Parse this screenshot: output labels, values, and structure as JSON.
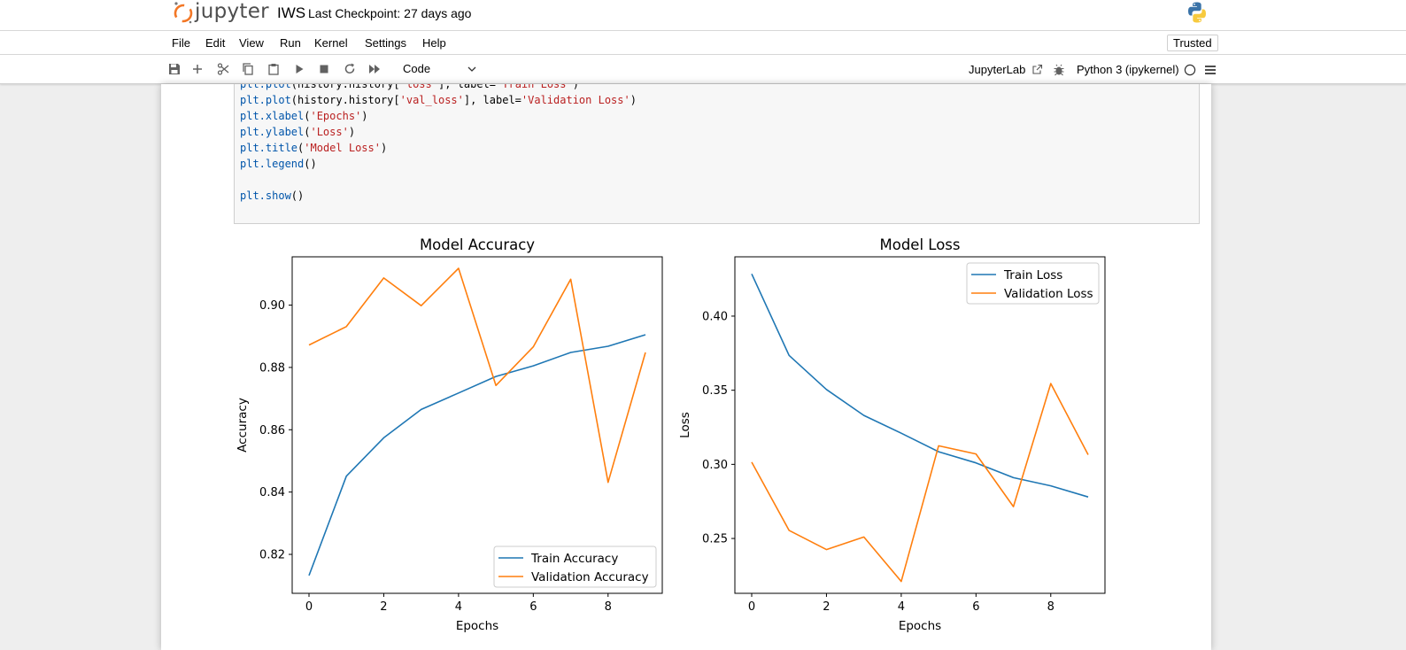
{
  "header": {
    "logo_text": "jupyter",
    "notebook_title": "IWS",
    "checkpoint": "Last Checkpoint: 27 days ago"
  },
  "menu": {
    "items": [
      "File",
      "Edit",
      "View",
      "Run",
      "Kernel",
      "Settings",
      "Help"
    ],
    "trusted": "Trusted"
  },
  "toolbar": {
    "icons": [
      "save-icon",
      "add-cell-icon",
      "cut-icon",
      "copy-icon",
      "paste-icon",
      "run-icon",
      "stop-icon",
      "restart-icon",
      "fast-forward-icon"
    ],
    "cell_type": "Code",
    "jupyterlab_label": "JupyterLab",
    "kernel_name": "Python 3 (ipykernel)"
  },
  "code": {
    "lines": [
      "plt.plot(history.history['loss'], label='Train Loss')",
      "plt.plot(history.history['val_loss'], label='Validation Loss')",
      "plt.xlabel('Epochs')",
      "plt.ylabel('Loss')",
      "plt.title('Model Loss')",
      "plt.legend()",
      "",
      "plt.show()"
    ]
  },
  "chart_data": [
    {
      "type": "line",
      "title": "Model Accuracy",
      "xlabel": "Epochs",
      "ylabel": "Accuracy",
      "xlim": [
        -0.45,
        9.45
      ],
      "ylim": [
        0.8075,
        0.9155
      ],
      "xticks": [
        0,
        2,
        4,
        6,
        8
      ],
      "yticks": [
        0.82,
        0.84,
        0.86,
        0.88,
        0.9
      ],
      "yticklabels": [
        "0.82",
        "0.84",
        "0.86",
        "0.88",
        "0.90"
      ],
      "legend_position": "lower-right",
      "x": [
        0,
        1,
        2,
        3,
        4,
        5,
        6,
        7,
        8,
        9
      ],
      "series": [
        {
          "name": "Train Accuracy",
          "color": "#1f77b4",
          "values": [
            0.8132,
            0.8451,
            0.8574,
            0.8665,
            0.8718,
            0.8771,
            0.8805,
            0.8848,
            0.8868,
            0.8905
          ]
        },
        {
          "name": "Validation Accuracy",
          "color": "#ff7f0e",
          "values": [
            0.8872,
            0.8931,
            0.9087,
            0.8998,
            0.9118,
            0.8742,
            0.8866,
            0.9083,
            0.8431,
            0.8848
          ]
        }
      ]
    },
    {
      "type": "line",
      "title": "Model Loss",
      "xlabel": "Epochs",
      "ylabel": "Loss",
      "xlim": [
        -0.45,
        9.45
      ],
      "ylim": [
        0.213,
        0.44
      ],
      "xticks": [
        0,
        2,
        4,
        6,
        8
      ],
      "yticks": [
        0.25,
        0.3,
        0.35,
        0.4
      ],
      "yticklabels": [
        "0.25",
        "0.30",
        "0.35",
        "0.40"
      ],
      "legend_position": "top-right",
      "x": [
        0,
        1,
        2,
        3,
        4,
        5,
        6,
        7,
        8,
        9
      ],
      "series": [
        {
          "name": "Train Loss",
          "color": "#1f77b4",
          "values": [
            0.4285,
            0.3735,
            0.3505,
            0.333,
            0.321,
            0.3085,
            0.301,
            0.291,
            0.2855,
            0.278
          ]
        },
        {
          "name": "Validation Loss",
          "color": "#ff7f0e",
          "values": [
            0.3015,
            0.2555,
            0.2425,
            0.251,
            0.221,
            0.3125,
            0.307,
            0.2715,
            0.3545,
            0.3065
          ]
        }
      ]
    }
  ]
}
